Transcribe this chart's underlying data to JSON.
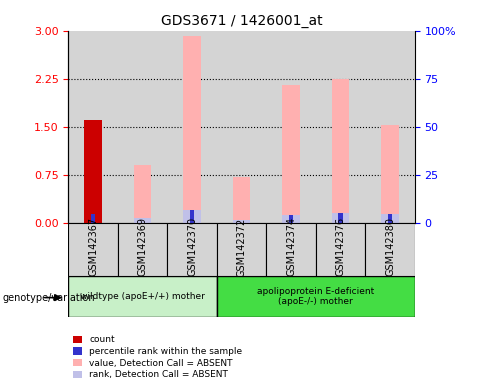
{
  "title": "GDS3671 / 1426001_at",
  "samples": [
    "GSM142367",
    "GSM142369",
    "GSM142370",
    "GSM142372",
    "GSM142374",
    "GSM142376",
    "GSM142380"
  ],
  "red_count": [
    1.6,
    0,
    0,
    0,
    0,
    0,
    0
  ],
  "blue_rank": [
    0.13,
    0,
    0.2,
    0,
    0.12,
    0.15,
    0.14
  ],
  "pink_value": [
    0.13,
    0.9,
    2.92,
    0.72,
    2.15,
    2.25,
    1.52
  ],
  "lavender_rank": [
    0.13,
    0.07,
    0.2,
    0.05,
    0.12,
    0.15,
    0.14
  ],
  "left_ylim": [
    0,
    3
  ],
  "left_yticks": [
    0,
    0.75,
    1.5,
    2.25,
    3
  ],
  "right_ylim": [
    0,
    100
  ],
  "right_yticks": [
    0,
    25,
    50,
    75,
    100
  ],
  "right_yticklabels": [
    "0",
    "25",
    "50",
    "75",
    "100%"
  ],
  "group1_label": "wildtype (apoE+/+) mother",
  "group2_label": "apolipoprotein E-deficient\n(apoE-/-) mother",
  "genotype_label": "genotype/variation",
  "bar_width": 0.35,
  "red_color": "#cc0000",
  "blue_color": "#3333cc",
  "pink_color": "#ffb0b0",
  "lavender_color": "#c0c0e8",
  "group1_bg": "#c8f0c8",
  "group2_bg": "#44dd44",
  "sample_bg": "#d4d4d4",
  "legend_labels": [
    "count",
    "percentile rank within the sample",
    "value, Detection Call = ABSENT",
    "rank, Detection Call = ABSENT"
  ],
  "grid_yticks": [
    0.75,
    1.5,
    2.25
  ]
}
